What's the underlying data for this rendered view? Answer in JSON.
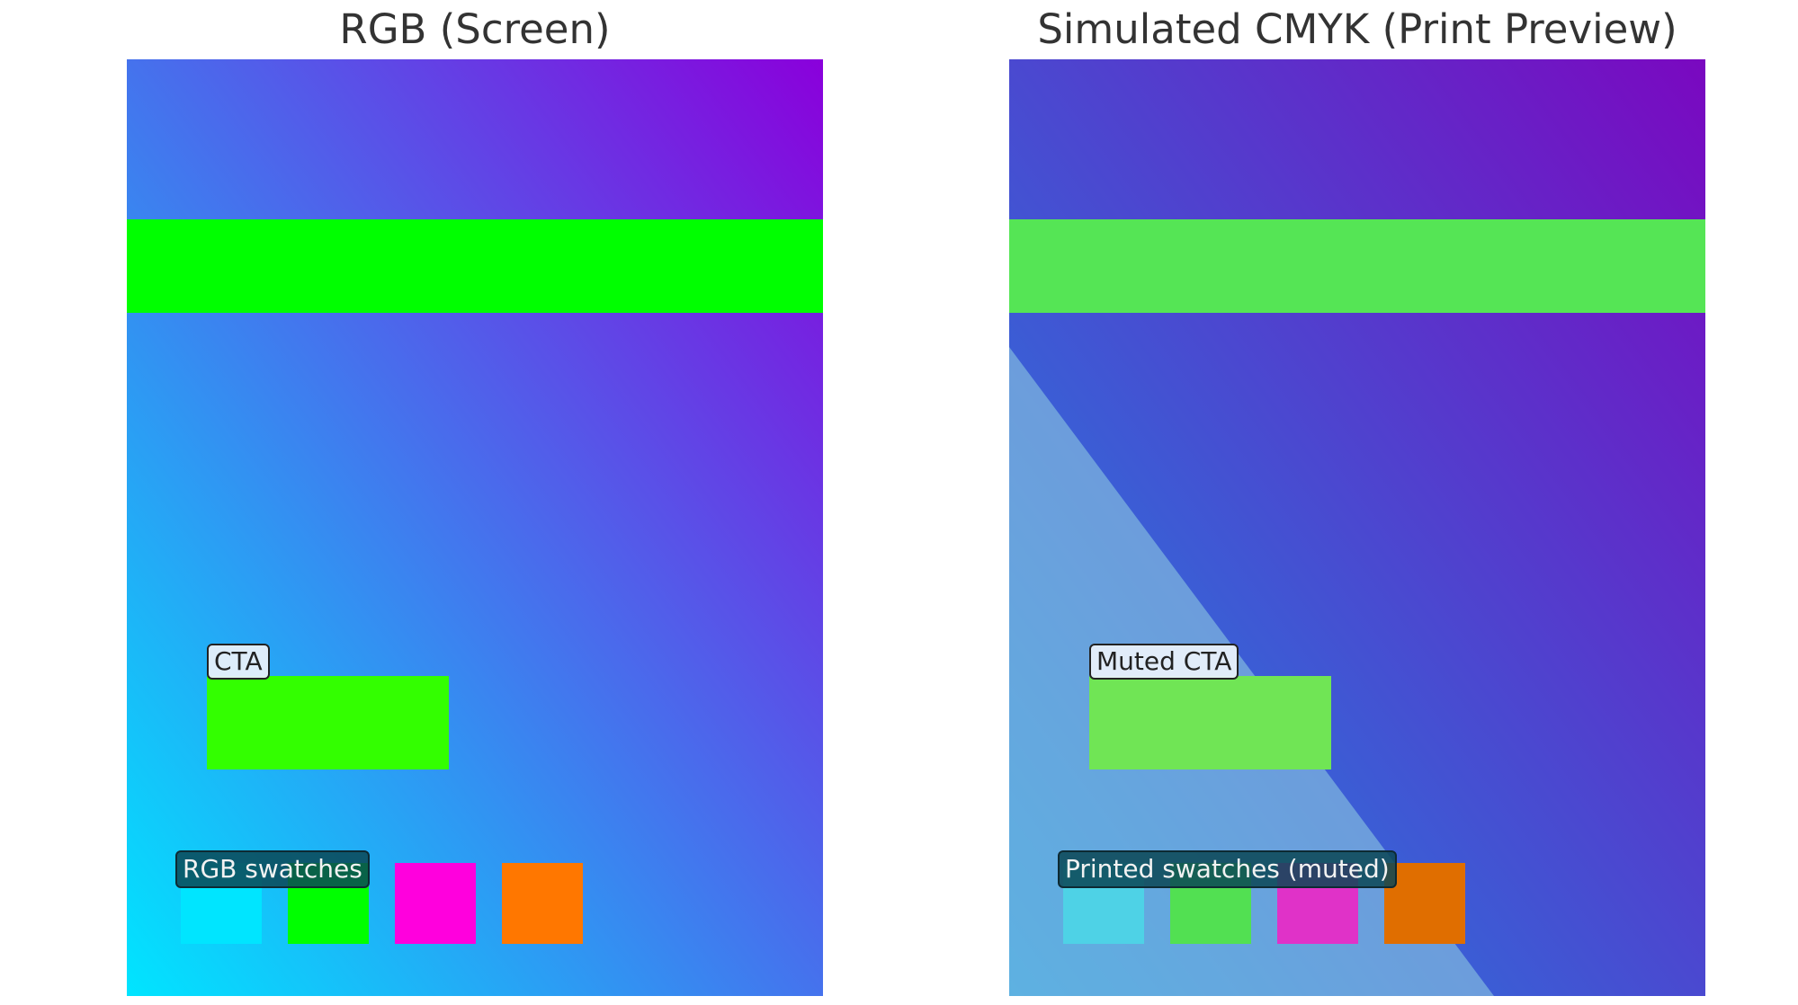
{
  "panels": [
    {
      "title": "RGB (Screen)",
      "gradient": {
        "corner_bottom_left": "#00e5ff",
        "corner_top_right": "#8a00db"
      },
      "hero_band_color": "#00ff00",
      "cta": {
        "label": "CTA",
        "color": "#33ff00"
      },
      "swatches_label": "RGB swatches",
      "swatches": [
        "#00e5ff",
        "#00ff00",
        "#ff00dd",
        "#ff7700"
      ],
      "fade_overlay": false
    },
    {
      "title": "Simulated CMYK (Print Preview)",
      "gradient": {
        "corner_bottom_left": "#1a8ae0",
        "corner_top_right": "#7a08c0"
      },
      "hero_band_color": "#55e555",
      "cta": {
        "label": "Muted CTA",
        "color": "#70e555"
      },
      "swatches_label": "Printed swatches (muted)",
      "swatches": [
        "#4ed2e6",
        "#52e052",
        "#e032c8",
        "#e06e00"
      ],
      "fade_overlay": true,
      "fade_overlay_color": "rgba(150,210,225,0.55)"
    }
  ]
}
